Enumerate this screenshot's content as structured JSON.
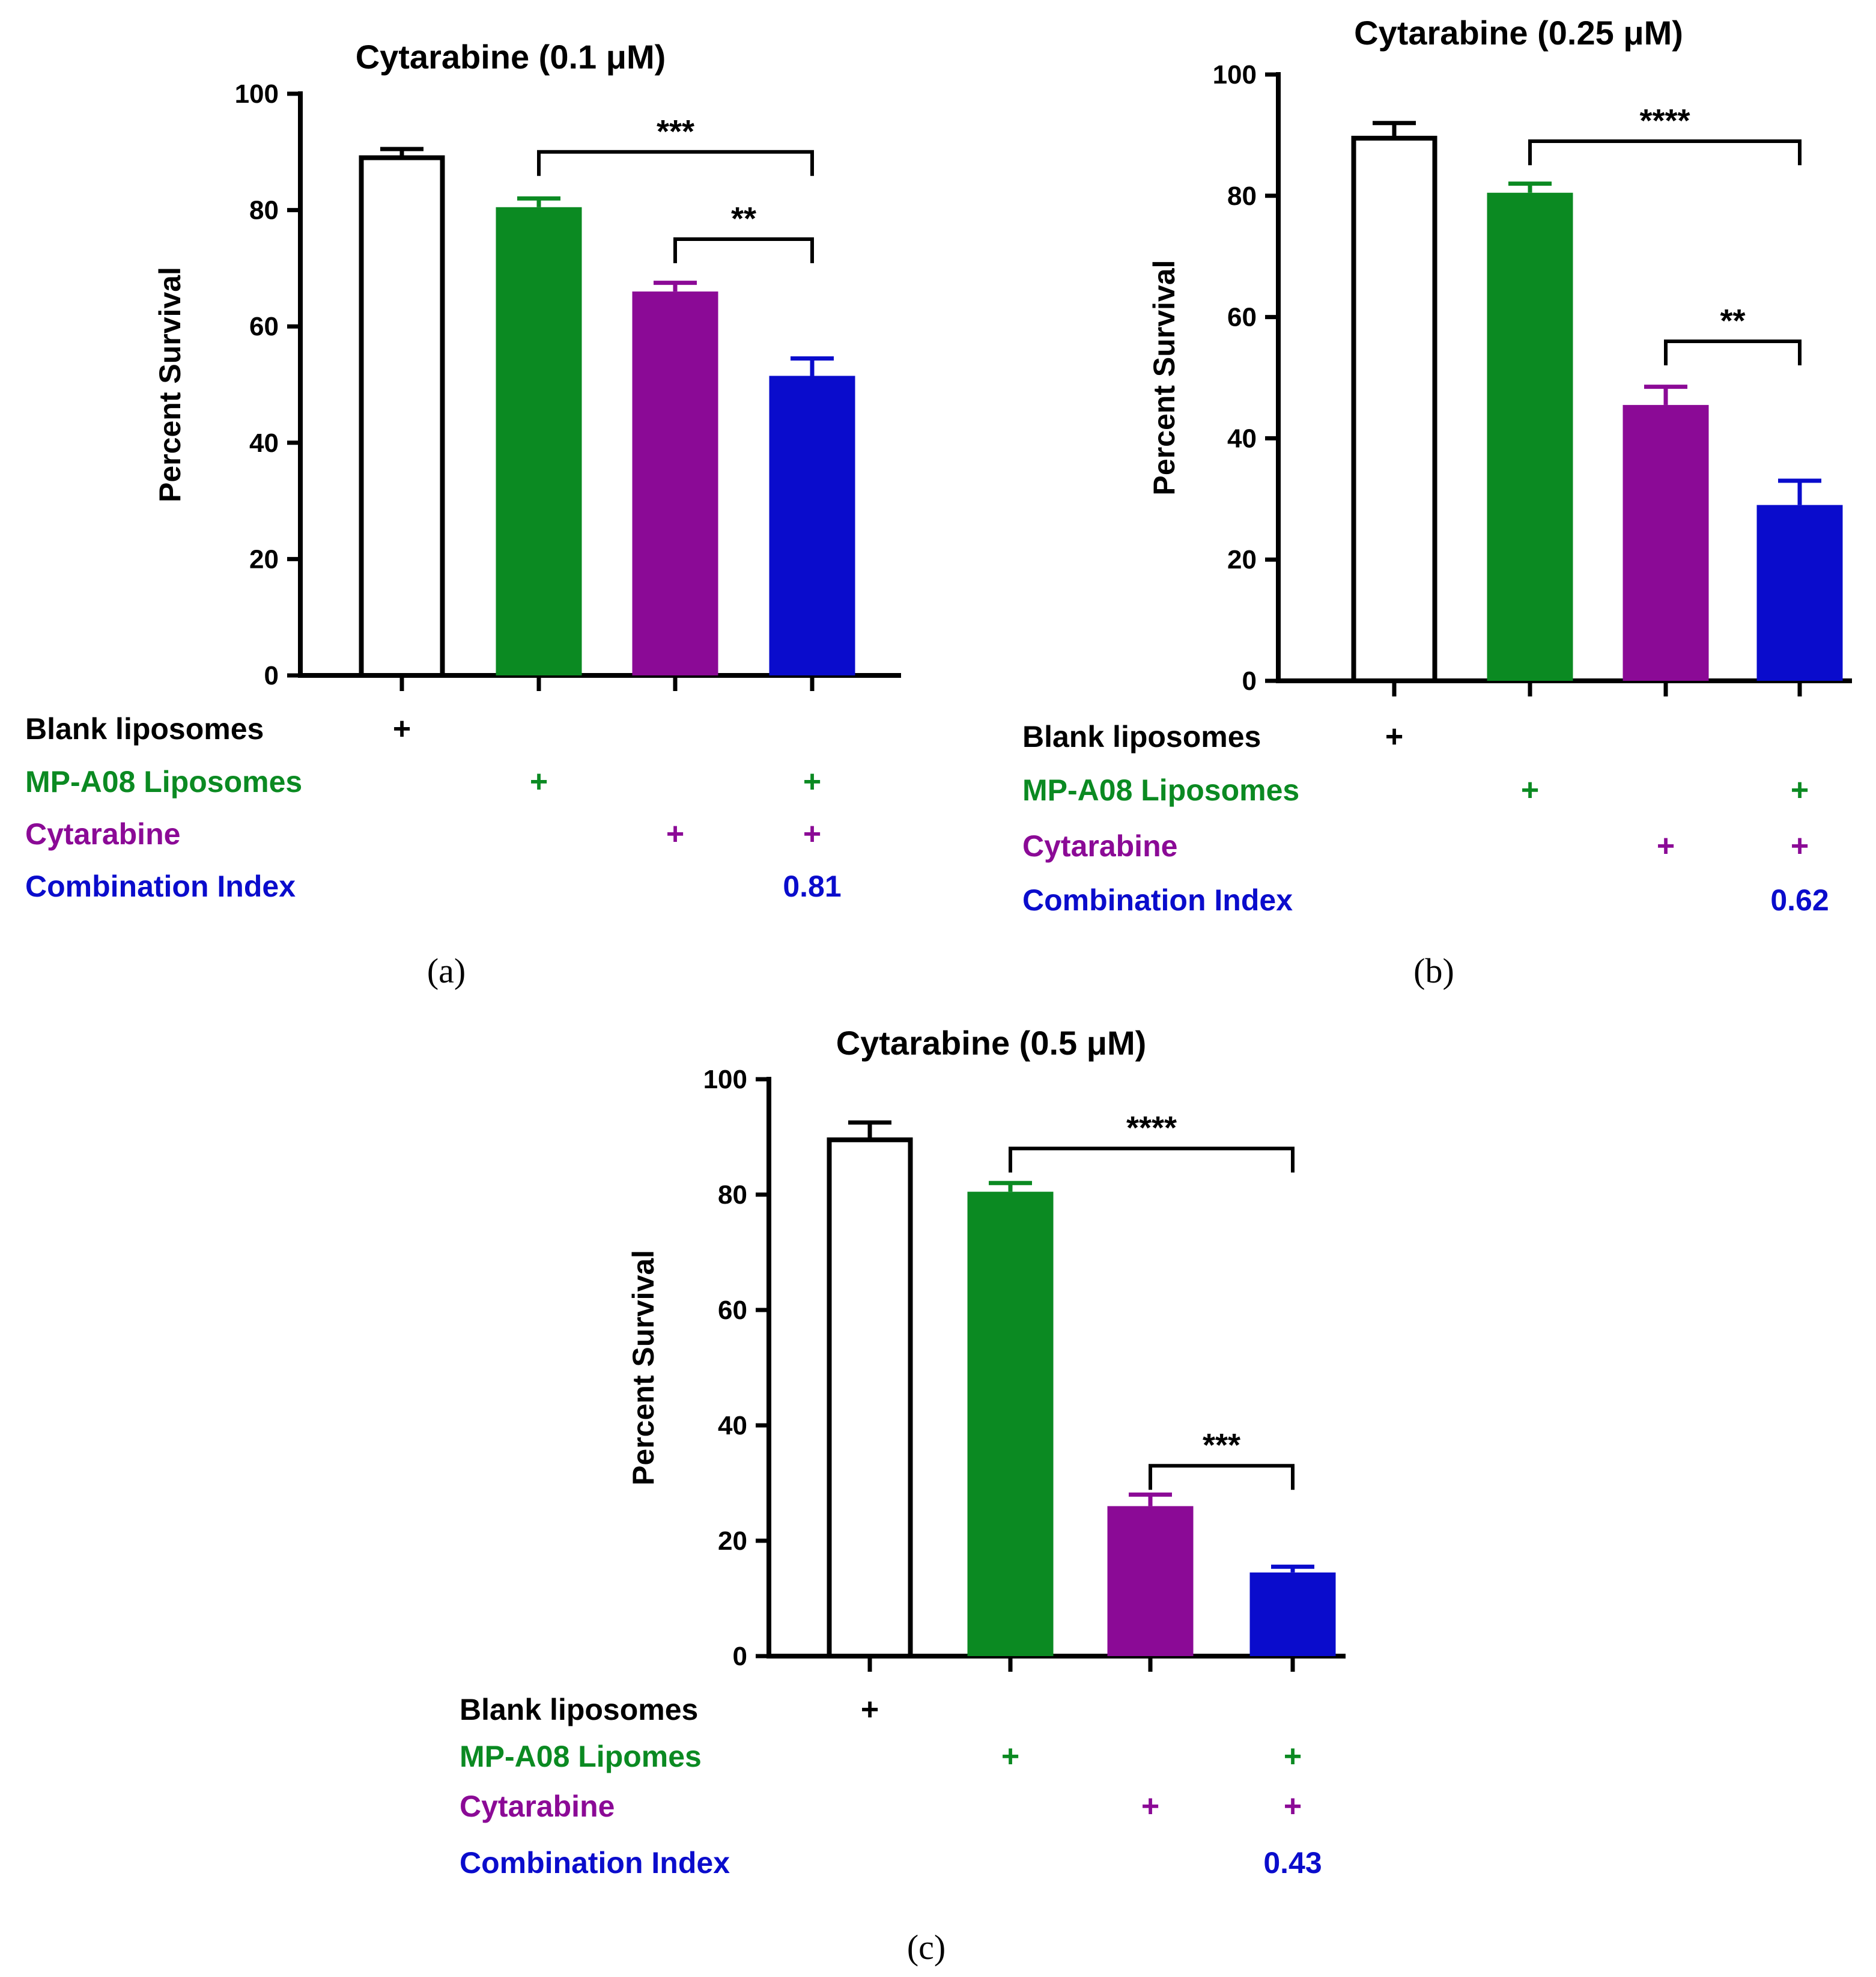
{
  "chart_data": [
    {
      "panel_label": "(a)",
      "type": "bar",
      "title": "Cytarabine (0.1 μM)",
      "ylabel": "Percent Survival",
      "ylim": [
        0,
        100
      ],
      "yticks": [
        0,
        20,
        40,
        60,
        80,
        100
      ],
      "values": [
        89,
        80.5,
        66,
        51.5
      ],
      "errors": [
        1.5,
        1.5,
        1.5,
        3
      ],
      "bar_colors": [
        "#ffffff",
        "#0b8a22",
        "#8b0a96",
        "#0a0ccc"
      ],
      "rows": [
        {
          "label": "Blank liposomes",
          "color": "#000000",
          "marks": [
            "+",
            "",
            "",
            ""
          ]
        },
        {
          "label": "MP-A08 Liposomes",
          "color": "#0b8a22",
          "marks": [
            "",
            "+",
            "",
            "+"
          ]
        },
        {
          "label": "Cytarabine",
          "color": "#8b0a96",
          "marks": [
            "",
            "",
            "+",
            "+"
          ]
        },
        {
          "label": "Combination Index",
          "color": "#0a0ccc",
          "marks": [
            "",
            "",
            "",
            "0.81"
          ]
        }
      ],
      "significance": [
        {
          "from": 1,
          "to": 3,
          "label": "***",
          "y": 90
        },
        {
          "from": 2,
          "to": 3,
          "label": "**",
          "y": 75
        }
      ]
    },
    {
      "panel_label": "(b)",
      "type": "bar",
      "title": "Cytarabine (0.25 μM)",
      "ylabel": "Percent Survival",
      "ylim": [
        0,
        100
      ],
      "yticks": [
        0,
        20,
        40,
        60,
        80,
        100
      ],
      "values": [
        89.5,
        80.5,
        45.5,
        29
      ],
      "errors": [
        2.5,
        1.5,
        3,
        4
      ],
      "bar_colors": [
        "#ffffff",
        "#0b8a22",
        "#8b0a96",
        "#0a0ccc"
      ],
      "rows": [
        {
          "label": "Blank liposomes",
          "color": "#000000",
          "marks": [
            "+",
            "",
            "",
            ""
          ]
        },
        {
          "label": "MP-A08 Liposomes",
          "color": "#0b8a22",
          "marks": [
            "",
            "+",
            "",
            "+"
          ]
        },
        {
          "label": "Cytarabine",
          "color": "#8b0a96",
          "marks": [
            "",
            "",
            "+",
            "+"
          ]
        },
        {
          "label": "Combination Index",
          "color": "#0a0ccc",
          "marks": [
            "",
            "",
            "",
            "0.62"
          ]
        }
      ],
      "significance": [
        {
          "from": 1,
          "to": 3,
          "label": "****",
          "y": 89
        },
        {
          "from": 2,
          "to": 3,
          "label": "**",
          "y": 56
        }
      ]
    },
    {
      "panel_label": "(c)",
      "type": "bar",
      "title": "Cytarabine (0.5 μM)",
      "ylabel": "Percent Survival",
      "ylim": [
        0,
        100
      ],
      "yticks": [
        0,
        20,
        40,
        60,
        80,
        100
      ],
      "values": [
        89.5,
        80.5,
        26,
        14.5
      ],
      "errors": [
        3,
        1.5,
        2,
        1
      ],
      "bar_colors": [
        "#ffffff",
        "#0b8a22",
        "#8b0a96",
        "#0a0ccc"
      ],
      "rows": [
        {
          "label": "Blank liposomes",
          "color": "#000000",
          "marks": [
            "+",
            "",
            "",
            ""
          ]
        },
        {
          "label": "MP-A08 Lipomes",
          "color": "#0b8a22",
          "marks": [
            "",
            "+",
            "",
            "+"
          ]
        },
        {
          "label": "Cytarabine",
          "color": "#8b0a96",
          "marks": [
            "",
            "",
            "+",
            "+"
          ]
        },
        {
          "label": "Combination Index",
          "color": "#0a0ccc",
          "marks": [
            "",
            "",
            "",
            "0.43"
          ]
        }
      ],
      "significance": [
        {
          "from": 1,
          "to": 3,
          "label": "****",
          "y": 88
        },
        {
          "from": 2,
          "to": 3,
          "label": "***",
          "y": 33
        }
      ]
    }
  ]
}
